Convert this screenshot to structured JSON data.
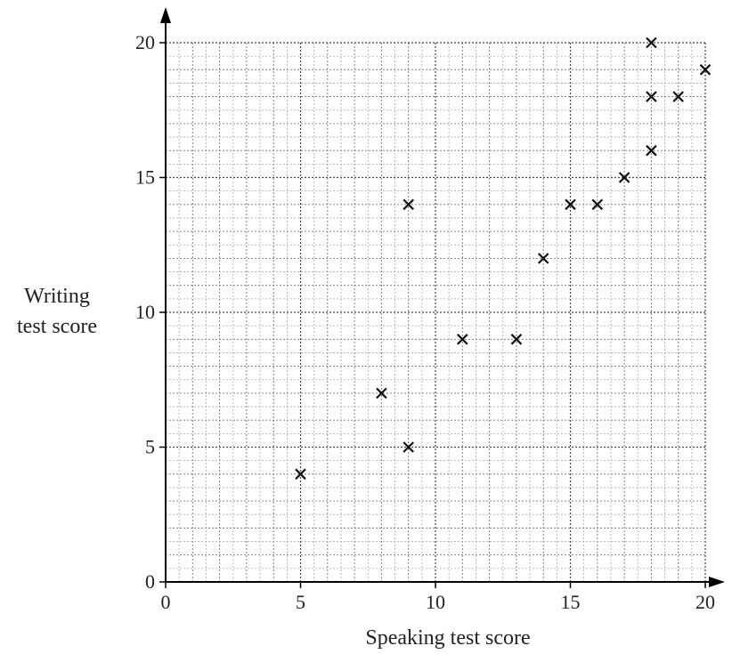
{
  "chart_data": {
    "type": "scatter",
    "xlabel": "Speaking test score",
    "ylabel_lines": [
      "Writing",
      "test score"
    ],
    "xlim": [
      0,
      20
    ],
    "ylim": [
      0,
      20
    ],
    "x_ticks": [
      0,
      5,
      10,
      15,
      20
    ],
    "y_ticks": [
      0,
      5,
      10,
      15,
      20
    ],
    "grid": true,
    "marker": "x",
    "points": [
      {
        "x": 5,
        "y": 4
      },
      {
        "x": 8,
        "y": 7
      },
      {
        "x": 9,
        "y": 5
      },
      {
        "x": 9,
        "y": 14
      },
      {
        "x": 11,
        "y": 9
      },
      {
        "x": 13,
        "y": 9
      },
      {
        "x": 14,
        "y": 12
      },
      {
        "x": 15,
        "y": 14
      },
      {
        "x": 16,
        "y": 14
      },
      {
        "x": 17,
        "y": 15
      },
      {
        "x": 18,
        "y": 16
      },
      {
        "x": 18,
        "y": 18
      },
      {
        "x": 18,
        "y": 20
      },
      {
        "x": 19,
        "y": 18
      },
      {
        "x": 20,
        "y": 19
      }
    ]
  }
}
